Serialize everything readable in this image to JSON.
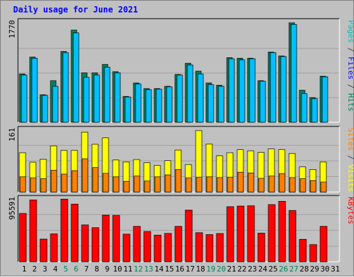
{
  "title": "Daily usage for June 2021",
  "chart_data": {
    "type": "bar",
    "title": "Daily usage for June 2021",
    "x": [
      "1",
      "2",
      "3",
      "4",
      "5",
      "6",
      "7",
      "8",
      "9",
      "10",
      "11",
      "12",
      "13",
      "14",
      "15",
      "16",
      "17",
      "18",
      "19",
      "20",
      "21",
      "22",
      "23",
      "24",
      "25",
      "26",
      "27",
      "28",
      "29",
      "30",
      "31"
    ],
    "weekend_days": [
      "5",
      "6",
      "12",
      "13",
      "19",
      "20",
      "26",
      "27"
    ],
    "panels": [
      {
        "name": "hits-files-pages",
        "max_label": "1770",
        "max_value": 1770,
        "side_label": [
          {
            "text": "Pages",
            "color": "#00c0c0"
          },
          {
            "text": " / ",
            "color": "#404040"
          },
          {
            "text": "Files",
            "color": "#0000ff"
          },
          {
            "text": " / ",
            "color": "#404040"
          },
          {
            "text": "Hits",
            "color": "#00805c"
          }
        ],
        "series": [
          {
            "name": "Hits",
            "color": "#008060",
            "values": [
              860,
              1160,
              490,
              740,
              1260,
              1640,
              880,
              880,
              1030,
              900,
              460,
              700,
              600,
              600,
              640,
              850,
              1050,
              910,
              700,
              660,
              1150,
              1140,
              1140,
              740,
              1250,
              1180,
              1770,
              570,
              440,
              820
            ]
          },
          {
            "name": "Files",
            "color": "#00c0ff",
            "values": [
              840,
              1140,
              480,
              640,
              1240,
              1590,
              800,
              840,
              980,
              880,
              450,
              680,
              580,
              590,
              630,
              840,
              1020,
              860,
              670,
              640,
              1130,
              1110,
              1130,
              730,
              1240,
              1170,
              1740,
              510,
              420,
              810
            ]
          }
        ]
      },
      {
        "name": "visits-sites",
        "max_label": "161",
        "max_value": 161,
        "side_label": [
          {
            "text": "Sites",
            "color": "#ff8000"
          },
          {
            "text": " / ",
            "color": "#404040"
          },
          {
            "text": "Visits",
            "color": "#ffff00"
          }
        ],
        "series": [
          {
            "name": "Visits",
            "color": "#ffff00",
            "values": [
              103,
              78,
              86,
              121,
              109,
              109,
              157,
              125,
              142,
              84,
              79,
              85,
              77,
              70,
              82,
              110,
              72,
              161,
              126,
              95,
              103,
              111,
              108,
              104,
              113,
              111,
              101,
              66,
              59,
              79
            ]
          },
          {
            "name": "Sites",
            "color": "#ff8000",
            "values": [
              40,
              37,
              35,
              57,
              47,
              56,
              87,
              64,
              49,
              40,
              28,
              42,
              29,
              40,
              45,
              59,
              37,
              39,
              40,
              38,
              39,
              52,
              50,
              36,
              42,
              48,
              38,
              35,
              30,
              26
            ]
          }
        ]
      },
      {
        "name": "kbytes",
        "max_label": "95591",
        "max_value": 95591,
        "side_label": [
          {
            "text": "KBytes",
            "color": "#ff0000"
          }
        ],
        "series": [
          {
            "name": "KBytes",
            "color": "#ff0000",
            "values": [
              74400,
              95100,
              35000,
              43000,
              96400,
              88700,
              56700,
              52500,
              71900,
              71400,
              42600,
              54500,
              46600,
              41100,
              43700,
              54500,
              79500,
              44800,
              41900,
              43500,
              84800,
              85800,
              86200,
              44100,
              88000,
              93000,
              78900,
              34600,
              26500,
              54500
            ]
          }
        ]
      }
    ]
  }
}
